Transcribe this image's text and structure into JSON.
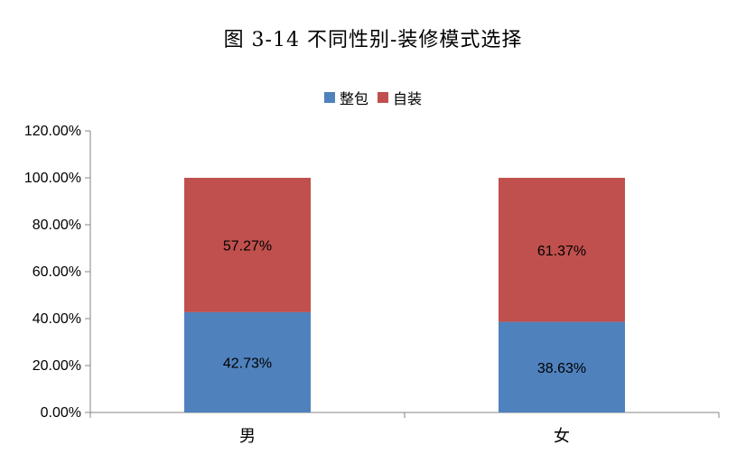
{
  "chart_data": {
    "type": "bar",
    "stacked": true,
    "title": "图  3-14    不同性别-装修模式选择",
    "categories": [
      "男",
      "女"
    ],
    "series": [
      {
        "name": "整包",
        "values": [
          42.73,
          38.63
        ],
        "labels": [
          "42.73%",
          "38.63%"
        ],
        "color": "#4f81bd"
      },
      {
        "name": "自装",
        "values": [
          57.27,
          61.37
        ],
        "labels": [
          "57.27%",
          "61.37%"
        ],
        "color": "#c0504d"
      }
    ],
    "yticks": [
      "0.00%",
      "20.00%",
      "40.00%",
      "60.00%",
      "80.00%",
      "100.00%",
      "120.00%"
    ],
    "ylim": [
      0,
      120
    ],
    "legend_position": "top",
    "grid": false
  }
}
